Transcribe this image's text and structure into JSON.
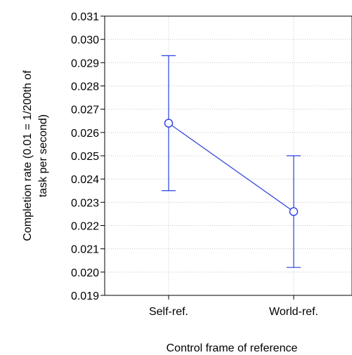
{
  "chart_data": {
    "type": "line",
    "categories": [
      "Self-ref.",
      "World-ref."
    ],
    "series": [
      {
        "values": [
          0.0264,
          0.0226
        ],
        "error_low": [
          0.0235,
          0.0202
        ],
        "error_high": [
          0.0293,
          0.025
        ]
      }
    ],
    "xlabel": "Control frame of reference",
    "ylabel_lines": [
      "Completion rate (0.01 = 1/200th of",
      "task per second)"
    ],
    "ylim": [
      0.019,
      0.031
    ],
    "yticks": [
      "0.019",
      "0.020",
      "0.021",
      "0.022",
      "0.023",
      "0.024",
      "0.025",
      "0.026",
      "0.027",
      "0.028",
      "0.029",
      "0.030",
      "0.031"
    ],
    "grid": true,
    "series_color": "#2a3fe0",
    "grid_color": "#c8c8c8"
  }
}
